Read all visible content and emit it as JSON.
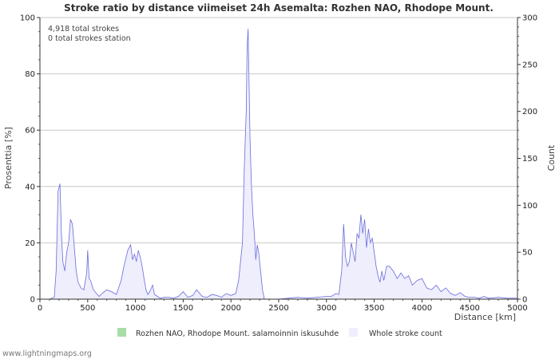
{
  "chart_data": {
    "type": "area",
    "title": "Stroke ratio by distance viimeiset 24h Asemalta: Rozhen NAO, Rhodope Mount.",
    "xlabel": "Distance   [km]",
    "ylabel_left": "Prosenttia   [%]",
    "ylabel_right": "Count",
    "xlim": [
      0,
      5000
    ],
    "ylim_left": [
      0,
      100
    ],
    "ylim_right": [
      0,
      300
    ],
    "x_ticks": [
      0,
      500,
      1000,
      1500,
      2000,
      2500,
      3000,
      3500,
      4000,
      4500,
      5000
    ],
    "y_ticks_left": [
      0,
      20,
      40,
      60,
      80,
      100
    ],
    "y_ticks_right": [
      0,
      50,
      100,
      150,
      200,
      250,
      300
    ],
    "grid": true,
    "notes": [
      "4,918 total strokes",
      "0 total strokes station"
    ],
    "series": [
      {
        "name": "Rozhen NAO, Rhodope Mount. salamoinnin iskusuhde",
        "axis": "left",
        "color": "#a8dca8",
        "x": [],
        "values": []
      },
      {
        "name": "Whole stroke count",
        "axis": "right",
        "color": "#6b6bdc",
        "fill": "#eeeefc",
        "x": [
          0,
          100,
          150,
          170,
          190,
          210,
          225,
          240,
          260,
          280,
          300,
          320,
          340,
          360,
          380,
          400,
          430,
          460,
          490,
          500,
          515,
          530,
          560,
          600,
          620,
          650,
          700,
          750,
          800,
          850,
          880,
          920,
          950,
          970,
          990,
          1010,
          1030,
          1050,
          1070,
          1090,
          1110,
          1130,
          1150,
          1180,
          1200,
          1230,
          1260,
          1300,
          1350,
          1400,
          1450,
          1500,
          1550,
          1600,
          1640,
          1700,
          1750,
          1800,
          1850,
          1900,
          1950,
          2000,
          2050,
          2080,
          2100,
          2120,
          2140,
          2160,
          2170,
          2180,
          2190,
          2200,
          2215,
          2230,
          2245,
          2260,
          2275,
          2290,
          2310,
          2330,
          2350,
          2400,
          2500,
          2600,
          2700,
          2800,
          2900,
          3000,
          3050,
          3100,
          3130,
          3160,
          3180,
          3200,
          3220,
          3240,
          3260,
          3280,
          3300,
          3320,
          3340,
          3360,
          3380,
          3400,
          3420,
          3440,
          3460,
          3480,
          3500,
          3520,
          3540,
          3560,
          3580,
          3600,
          3630,
          3660,
          3700,
          3740,
          3780,
          3820,
          3860,
          3900,
          3950,
          4000,
          4050,
          4100,
          4150,
          4200,
          4250,
          4300,
          4350,
          4400,
          4450,
          4500,
          4550,
          4600,
          4650,
          4700,
          4800,
          4900,
          5000
        ],
        "values": [
          0,
          0,
          2,
          30,
          115,
          123,
          70,
          40,
          30,
          50,
          60,
          85,
          80,
          55,
          30,
          18,
          12,
          10,
          28,
          52,
          22,
          20,
          10,
          5,
          3,
          6,
          10,
          8,
          5,
          20,
          35,
          52,
          58,
          42,
          48,
          40,
          52,
          45,
          35,
          22,
          10,
          5,
          8,
          15,
          5,
          3,
          1,
          2,
          2,
          1,
          3,
          8,
          2,
          4,
          10,
          3,
          2,
          5,
          4,
          2,
          6,
          4,
          6,
          20,
          40,
          60,
          140,
          200,
          270,
          288,
          230,
          170,
          120,
          90,
          70,
          42,
          58,
          50,
          30,
          10,
          0,
          0,
          0,
          1,
          2,
          1,
          2,
          3,
          3,
          6,
          5,
          30,
          80,
          45,
          35,
          40,
          60,
          50,
          40,
          70,
          65,
          90,
          70,
          85,
          55,
          75,
          60,
          65,
          50,
          35,
          25,
          18,
          30,
          20,
          35,
          35,
          30,
          22,
          28,
          22,
          25,
          15,
          20,
          22,
          12,
          10,
          15,
          8,
          12,
          6,
          4,
          7,
          3,
          2,
          2,
          1,
          3,
          1,
          2,
          1,
          1
        ]
      }
    ]
  },
  "footer": "www.lightningmaps.org"
}
